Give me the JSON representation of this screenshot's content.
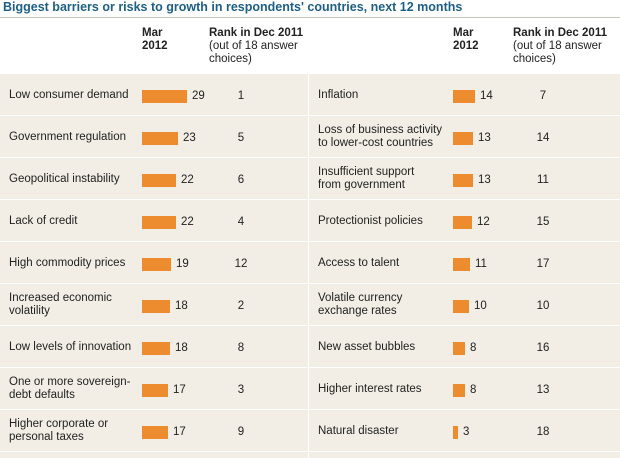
{
  "title": "Biggest barriers or risks to growth in respondents' countries, next 12 months",
  "headers": {
    "left": {
      "mar_line1": "Mar",
      "mar_line2": "2012",
      "rank_line1": "Rank in Dec 2011",
      "rank_line2": "(out of 18 answer",
      "rank_line3": "choices)"
    },
    "right": {
      "mar_line1": "Mar",
      "mar_line2": "2012",
      "rank_line1": "Rank in Dec 2011",
      "rank_line2": "(out of 18 answer",
      "rank_line3": "choices)"
    }
  },
  "colors": {
    "bar": "#ec8c2e",
    "title": "#1d5f86",
    "table_bg": "#f2eee5"
  },
  "chart_data": {
    "type": "bar",
    "series": [
      {
        "name": "Mar 2012",
        "categories": [
          "Low consumer demand",
          "Government regulation",
          "Geopolitical instability",
          "Lack of credit",
          "High commodity prices",
          "Increased economic volatility",
          "Low levels of innovation",
          "One or more sovereign-debt defaults",
          "Higher corporate or personal taxes",
          "Inflation",
          "Loss of business activity to lower-cost countries",
          "Insufficient support from government",
          "Protectionist policies",
          "Access to talent",
          "Volatile currency exchange rates",
          "New asset bubbles",
          "Higher interest rates",
          "Natural disaster"
        ],
        "values": [
          29,
          23,
          22,
          22,
          19,
          18,
          18,
          17,
          17,
          14,
          13,
          13,
          12,
          11,
          10,
          8,
          8,
          3
        ]
      }
    ],
    "rank_dec_2011": [
      1,
      5,
      6,
      4,
      12,
      2,
      8,
      3,
      9,
      7,
      14,
      11,
      15,
      17,
      10,
      16,
      13,
      18
    ]
  },
  "left_rows": [
    {
      "label_lines": [
        "Low consumer demand"
      ],
      "value": 29,
      "rank": 1
    },
    {
      "label_lines": [
        "Government regulation"
      ],
      "value": 23,
      "rank": 5
    },
    {
      "label_lines": [
        "Geopolitical instability"
      ],
      "value": 22,
      "rank": 6
    },
    {
      "label_lines": [
        "Lack of credit"
      ],
      "value": 22,
      "rank": 4
    },
    {
      "label_lines": [
        "High commodity prices"
      ],
      "value": 19,
      "rank": 12
    },
    {
      "label_lines": [
        "Increased economic",
        "volatility"
      ],
      "value": 18,
      "rank": 2
    },
    {
      "label_lines": [
        "Low levels of innovation"
      ],
      "value": 18,
      "rank": 8
    },
    {
      "label_lines": [
        "One or more sovereign-",
        "debt defaults"
      ],
      "value": 17,
      "rank": 3
    },
    {
      "label_lines": [
        "Higher corporate or",
        "personal taxes"
      ],
      "value": 17,
      "rank": 9
    }
  ],
  "right_rows": [
    {
      "label_lines": [
        "Inflation"
      ],
      "value": 14,
      "rank": 7
    },
    {
      "label_lines": [
        "Loss of business activity",
        "to lower-cost countries"
      ],
      "value": 13,
      "rank": 14
    },
    {
      "label_lines": [
        "Insufficient support",
        "from government"
      ],
      "value": 13,
      "rank": 11
    },
    {
      "label_lines": [
        "Protectionist policies"
      ],
      "value": 12,
      "rank": 15
    },
    {
      "label_lines": [
        "Access to talent"
      ],
      "value": 11,
      "rank": 17
    },
    {
      "label_lines": [
        "Volatile currency",
        "exchange rates"
      ],
      "value": 10,
      "rank": 10
    },
    {
      "label_lines": [
        "New asset bubbles"
      ],
      "value": 8,
      "rank": 16
    },
    {
      "label_lines": [
        "Higher interest rates"
      ],
      "value": 8,
      "rank": 13
    },
    {
      "label_lines": [
        "Natural disaster"
      ],
      "value": 3,
      "rank": 18
    }
  ]
}
